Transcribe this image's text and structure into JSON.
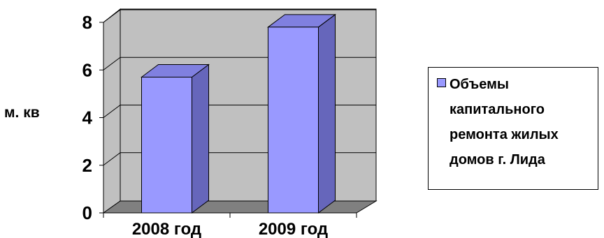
{
  "chart_data": {
    "type": "bar",
    "categories": [
      "2008 год",
      "2009 год"
    ],
    "series": [
      {
        "name": "Объемы капитального ремонта жилых домов г. Лида",
        "values": [
          5.7,
          7.8
        ]
      }
    ],
    "ylabel": "м. кв",
    "xlabel": "",
    "ylim": [
      0,
      8
    ],
    "yticks": [
      0,
      2,
      4,
      6,
      8
    ],
    "grid": true,
    "style": "3d",
    "legend_position": "right",
    "colors": {
      "bar_front": "#9999FF",
      "bar_side": "#6666BB",
      "bar_top": "#8080E0",
      "wall": "#C0C0C0",
      "floor": "#808080"
    }
  }
}
